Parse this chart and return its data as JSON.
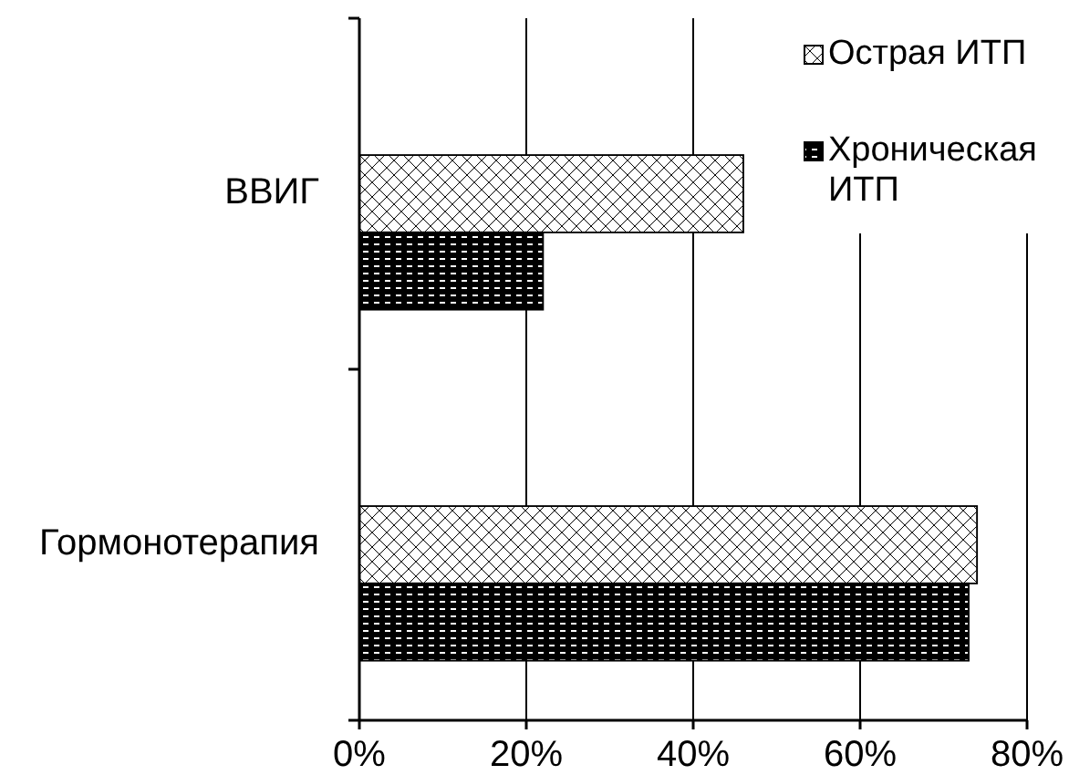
{
  "chart_data": {
    "type": "bar",
    "orientation": "horizontal",
    "categories": [
      "ВВИГ",
      "Гормонотерапия"
    ],
    "series": [
      {
        "name": "Острая ИТП",
        "color": "#ffffff",
        "values": [
          46,
          74
        ]
      },
      {
        "name": "Хроническая ИТП",
        "color": "#000000",
        "values": [
          22,
          73
        ]
      }
    ],
    "xlim": [
      0,
      80
    ],
    "xticks": [
      {
        "value": 0,
        "label": "0%"
      },
      {
        "value": 20,
        "label": "20%"
      },
      {
        "value": 40,
        "label": "40%"
      },
      {
        "value": 60,
        "label": "60%"
      },
      {
        "value": 80,
        "label": "80%"
      }
    ],
    "grid": "x",
    "legend": "top right"
  }
}
